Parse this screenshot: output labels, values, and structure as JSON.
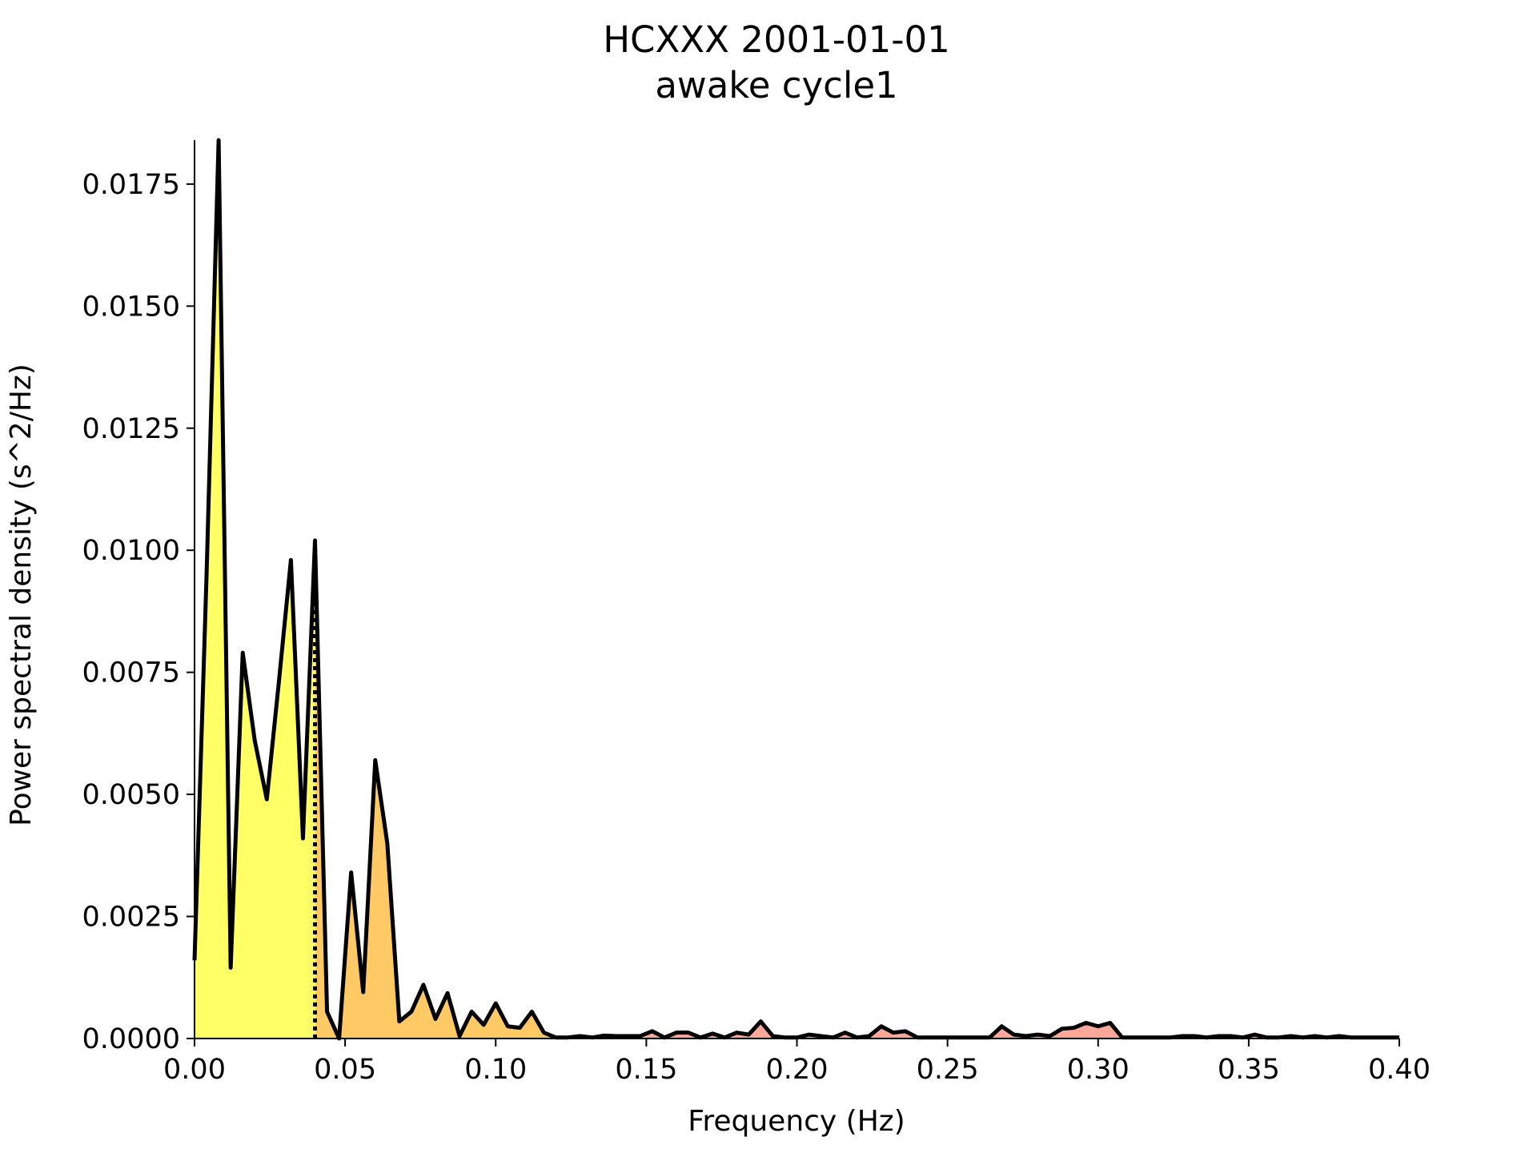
{
  "chart_data": {
    "type": "area",
    "title": "HCXXX 2001-01-01",
    "subtitle": "awake cycle1",
    "xlabel": "Frequency (Hz)",
    "ylabel": "Power spectral density (s^2/Hz)",
    "xlim": [
      0,
      0.4
    ],
    "ylim": [
      0,
      0.0184
    ],
    "grid": false,
    "xticks": [
      0.0,
      0.05,
      0.1,
      0.15,
      0.2,
      0.25,
      0.3,
      0.35,
      0.4
    ],
    "xtick_labels": [
      "0.00",
      "0.05",
      "0.10",
      "0.15",
      "0.20",
      "0.25",
      "0.30",
      "0.35",
      "0.40"
    ],
    "yticks": [
      0,
      0.0025,
      0.005,
      0.0075,
      0.01,
      0.0125,
      0.015,
      0.0175
    ],
    "ytick_labels": [
      "0.0000",
      "0.0025",
      "0.0050",
      "0.0075",
      "0.0100",
      "0.0125",
      "0.0150",
      "0.0175"
    ],
    "marker_line_x": 0.04,
    "bands": [
      {
        "range": [
          0.0,
          0.04
        ],
        "color": "#ffff66"
      },
      {
        "range": [
          0.04,
          0.15
        ],
        "color": "#ffc966"
      },
      {
        "range": [
          0.15,
          0.4
        ],
        "color": "#ffa899"
      }
    ],
    "x": [
      0.0,
      0.004,
      0.008,
      0.012,
      0.016,
      0.02,
      0.024,
      0.028,
      0.032,
      0.036,
      0.04,
      0.044,
      0.048,
      0.052,
      0.056,
      0.06,
      0.064,
      0.068,
      0.072,
      0.076,
      0.08,
      0.084,
      0.088,
      0.092,
      0.096,
      0.1,
      0.104,
      0.108,
      0.112,
      0.116,
      0.12,
      0.124,
      0.128,
      0.132,
      0.136,
      0.14,
      0.144,
      0.148,
      0.152,
      0.156,
      0.16,
      0.164,
      0.168,
      0.172,
      0.176,
      0.18,
      0.184,
      0.188,
      0.192,
      0.196,
      0.2,
      0.204,
      0.208,
      0.212,
      0.216,
      0.22,
      0.224,
      0.228,
      0.232,
      0.236,
      0.24,
      0.244,
      0.248,
      0.252,
      0.256,
      0.26,
      0.264,
      0.268,
      0.272,
      0.276,
      0.28,
      0.284,
      0.288,
      0.292,
      0.296,
      0.3,
      0.304,
      0.308,
      0.312,
      0.316,
      0.32,
      0.324,
      0.328,
      0.332,
      0.336,
      0.34,
      0.344,
      0.348,
      0.352,
      0.356,
      0.36,
      0.364,
      0.368,
      0.372,
      0.376,
      0.38,
      0.384,
      0.388,
      0.392,
      0.396,
      0.4
    ],
    "values": [
      0.0016,
      0.0095,
      0.0184,
      0.00145,
      0.0079,
      0.0061,
      0.0049,
      0.0073,
      0.0098,
      0.0041,
      0.0102,
      0.00055,
      0.0,
      0.0034,
      0.00095,
      0.0057,
      0.004,
      0.00035,
      0.00055,
      0.0011,
      0.0004,
      0.00093,
      5e-05,
      0.00055,
      0.00028,
      0.00072,
      0.00025,
      0.00022,
      0.00055,
      0.00012,
      2e-05,
      2e-05,
      5e-05,
      2e-05,
      6e-05,
      5e-05,
      5e-05,
      5e-05,
      0.00015,
      2e-05,
      0.00012,
      0.00012,
      2e-05,
      0.0001,
      2e-05,
      0.00012,
      8e-05,
      0.00035,
      5e-05,
      2e-05,
      2e-05,
      8e-05,
      5e-05,
      2e-05,
      0.00012,
      2e-05,
      5e-05,
      0.00025,
      0.00012,
      0.00015,
      2e-05,
      2e-05,
      2e-05,
      2e-05,
      2e-05,
      2e-05,
      2e-05,
      0.00025,
      8e-05,
      5e-05,
      8e-05,
      5e-05,
      0.0002,
      0.00022,
      0.00032,
      0.00025,
      0.00032,
      2e-05,
      2e-05,
      2e-05,
      2e-05,
      2e-05,
      5e-05,
      5e-05,
      2e-05,
      5e-05,
      5e-05,
      2e-05,
      8e-05,
      2e-05,
      2e-05,
      5e-05,
      2e-05,
      5e-05,
      2e-05,
      5e-05,
      2e-05,
      2e-05,
      2e-05,
      2e-05,
      2e-05
    ]
  }
}
